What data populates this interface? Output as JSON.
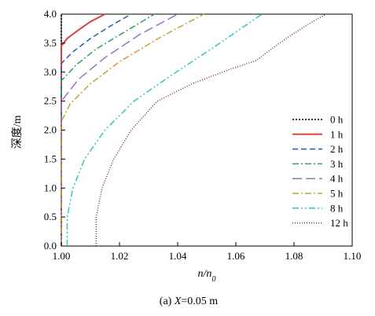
{
  "chart_data": {
    "type": "line",
    "xlabel": "n/n0",
    "ylabel": "深度/m",
    "caption": "(a) X=0.05 m",
    "xlim": [
      1.0,
      1.1
    ],
    "ylim": [
      0.0,
      4.0
    ],
    "x_ticks": [
      "1.00",
      "1.02",
      "1.04",
      "1.06",
      "1.08",
      "1.10"
    ],
    "y_ticks": [
      "0.0",
      "0.5",
      "1.0",
      "1.5",
      "2.0",
      "2.5",
      "3.0",
      "3.5",
      "4.0"
    ],
    "legend_position": "right",
    "series": [
      {
        "name": "0 h",
        "color": "#333333",
        "dash": "dotted-bold",
        "x": [
          1.0,
          1.0,
          1.0
        ],
        "y": [
          0.0,
          2.0,
          4.0
        ]
      },
      {
        "name": "1 h",
        "color": "#e0403c",
        "dash": "solid",
        "x": [
          1.0,
          1.0,
          1.0,
          1.002,
          1.006,
          1.01,
          1.015
        ],
        "y": [
          0.0,
          3.0,
          3.45,
          3.58,
          3.73,
          3.87,
          4.0
        ]
      },
      {
        "name": "2 h",
        "color": "#1f5fb0",
        "dash": "dash",
        "x": [
          1.0,
          1.0,
          1.0,
          1.004,
          1.01,
          1.017,
          1.024
        ],
        "y": [
          0.0,
          2.6,
          3.15,
          3.35,
          3.58,
          3.8,
          4.0
        ]
      },
      {
        "name": "3 h",
        "color": "#2e9e6a",
        "dash": "dashdot",
        "x": [
          1.0,
          1.0,
          1.0,
          1.005,
          1.012,
          1.022,
          1.032
        ],
        "y": [
          0.0,
          2.3,
          2.85,
          3.12,
          3.4,
          3.7,
          4.0
        ]
      },
      {
        "name": "4 h",
        "color": "#9a6fc4",
        "dash": "longdash",
        "x": [
          1.0,
          1.0,
          1.0,
          1.006,
          1.015,
          1.027,
          1.04
        ],
        "y": [
          0.0,
          2.0,
          2.5,
          2.88,
          3.25,
          3.65,
          4.0
        ]
      },
      {
        "name": "5 h",
        "color": "#c8a038",
        "dash": "dashdot",
        "x": [
          1.0,
          1.0,
          1.0,
          1.003,
          1.01,
          1.02,
          1.034,
          1.049
        ],
        "y": [
          0.0,
          1.6,
          2.15,
          2.45,
          2.8,
          3.18,
          3.6,
          4.0
        ]
      },
      {
        "name": "8 h",
        "color": "#36c4c4",
        "dash": "dashdotdot",
        "x": [
          1.002,
          1.002,
          1.004,
          1.008,
          1.015,
          1.025,
          1.038,
          1.053,
          1.069
        ],
        "y": [
          0.0,
          0.5,
          1.0,
          1.5,
          2.0,
          2.5,
          2.95,
          3.45,
          4.0
        ]
      },
      {
        "name": "12 h",
        "color": "#7a3030",
        "dash": "dotted",
        "x": [
          1.012,
          1.012,
          1.014,
          1.018,
          1.024,
          1.033,
          1.045,
          1.058,
          1.067,
          1.075,
          1.084,
          1.091
        ],
        "y": [
          0.0,
          0.5,
          1.0,
          1.5,
          2.0,
          2.5,
          2.8,
          3.05,
          3.2,
          3.5,
          3.8,
          4.0
        ]
      }
    ]
  }
}
